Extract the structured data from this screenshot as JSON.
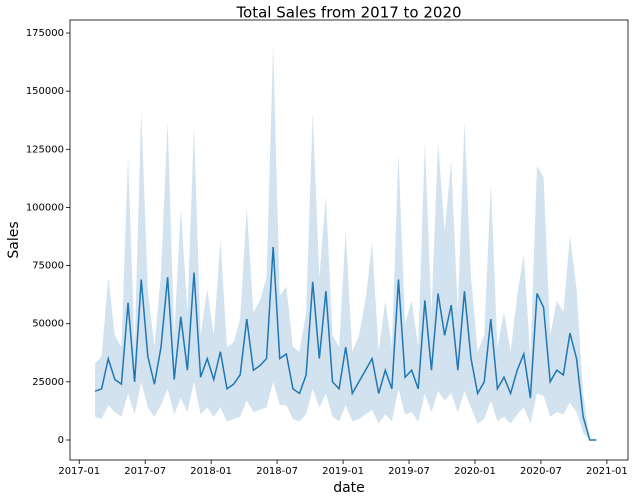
{
  "chart_data": {
    "type": "line",
    "title": "Total Sales from 2017 to 2020",
    "x_label": "date",
    "y_label": "Sales",
    "color": "#1f77b4",
    "band_color": "#a6c8e0",
    "grid": false,
    "x": [
      2017.12,
      2017.17,
      2017.22,
      2017.27,
      2017.32,
      2017.37,
      2017.42,
      2017.47,
      2017.52,
      2017.57,
      2017.62,
      2017.67,
      2017.72,
      2017.77,
      2017.82,
      2017.87,
      2017.92,
      2017.97,
      2018.02,
      2018.07,
      2018.12,
      2018.17,
      2018.22,
      2018.27,
      2018.32,
      2018.37,
      2018.42,
      2018.47,
      2018.52,
      2018.57,
      2018.62,
      2018.67,
      2018.72,
      2018.77,
      2018.82,
      2018.87,
      2018.92,
      2018.97,
      2019.02,
      2019.07,
      2019.12,
      2019.17,
      2019.22,
      2019.27,
      2019.32,
      2019.37,
      2019.42,
      2019.47,
      2019.52,
      2019.57,
      2019.62,
      2019.67,
      2019.72,
      2019.77,
      2019.82,
      2019.87,
      2019.92,
      2019.97,
      2020.02,
      2020.07,
      2020.12,
      2020.17,
      2020.22,
      2020.27,
      2020.32,
      2020.37,
      2020.42,
      2020.47,
      2020.52,
      2020.57,
      2020.62,
      2020.67,
      2020.72,
      2020.77,
      2020.82,
      2020.87,
      2020.92
    ],
    "values": [
      21000,
      22000,
      35000,
      26000,
      24000,
      59000,
      25000,
      69000,
      36000,
      24000,
      40000,
      70000,
      26000,
      53000,
      30000,
      72000,
      27000,
      35000,
      26000,
      38000,
      22000,
      24000,
      28000,
      52000,
      30000,
      32000,
      35000,
      83000,
      35000,
      37000,
      22000,
      20000,
      28000,
      68000,
      35000,
      64000,
      25000,
      22000,
      40000,
      20000,
      25000,
      30000,
      35000,
      20000,
      30000,
      22000,
      69000,
      27000,
      30000,
      22000,
      60000,
      30000,
      63000,
      45000,
      58000,
      30000,
      64000,
      35000,
      20000,
      25000,
      52000,
      22000,
      27000,
      20000,
      30000,
      37000,
      18000,
      63000,
      57000,
      25000,
      30000,
      28000,
      46000,
      35000,
      10000,
      0,
      0
    ],
    "lower": [
      10000,
      9000,
      15000,
      12000,
      10000,
      20000,
      11000,
      25000,
      14000,
      10000,
      15000,
      22000,
      11000,
      18000,
      12000,
      25000,
      11000,
      14000,
      10000,
      14000,
      8000,
      9000,
      10000,
      17000,
      12000,
      13000,
      14000,
      25000,
      15000,
      15000,
      9000,
      8000,
      11000,
      22000,
      14000,
      20000,
      10000,
      8000,
      15000,
      8000,
      9000,
      11000,
      13000,
      7000,
      11000,
      8000,
      22000,
      11000,
      12000,
      8000,
      20000,
      12000,
      21000,
      17000,
      20000,
      12000,
      21000,
      14000,
      7000,
      9000,
      17000,
      8000,
      10000,
      7000,
      11000,
      14000,
      7000,
      20000,
      19000,
      10000,
      12000,
      11000,
      16000,
      12000,
      3000,
      0,
      0
    ],
    "upper": [
      33000,
      36000,
      70000,
      45000,
      40000,
      122000,
      40000,
      142000,
      65000,
      40000,
      72000,
      137000,
      45000,
      100000,
      55000,
      135000,
      45000,
      65000,
      45000,
      86000,
      40000,
      42000,
      52000,
      100000,
      55000,
      60000,
      70000,
      170000,
      62000,
      66000,
      40000,
      38000,
      55000,
      141000,
      70000,
      105000,
      45000,
      40000,
      90000,
      38000,
      45000,
      60000,
      85000,
      38000,
      60000,
      40000,
      123000,
      50000,
      60000,
      40000,
      128000,
      55000,
      128000,
      90000,
      120000,
      55000,
      137000,
      70000,
      38000,
      45000,
      110000,
      40000,
      55000,
      38000,
      62000,
      80000,
      35000,
      118000,
      113000,
      45000,
      60000,
      55000,
      88000,
      65000,
      20000,
      0,
      0
    ],
    "xlim": [
      2016.93,
      2021.16
    ],
    "ylim": [
      -8600,
      180600
    ],
    "xticks": [
      {
        "value": 2017.0,
        "label": "2017-01"
      },
      {
        "value": 2017.5,
        "label": "2017-07"
      },
      {
        "value": 2018.0,
        "label": "2018-01"
      },
      {
        "value": 2018.5,
        "label": "2018-07"
      },
      {
        "value": 2019.0,
        "label": "2019-01"
      },
      {
        "value": 2019.5,
        "label": "2019-07"
      },
      {
        "value": 2020.0,
        "label": "2020-01"
      },
      {
        "value": 2020.5,
        "label": "2020-07"
      },
      {
        "value": 2021.0,
        "label": "2021-01"
      }
    ],
    "yticks": [
      0,
      25000,
      50000,
      75000,
      100000,
      125000,
      150000,
      175000
    ]
  }
}
